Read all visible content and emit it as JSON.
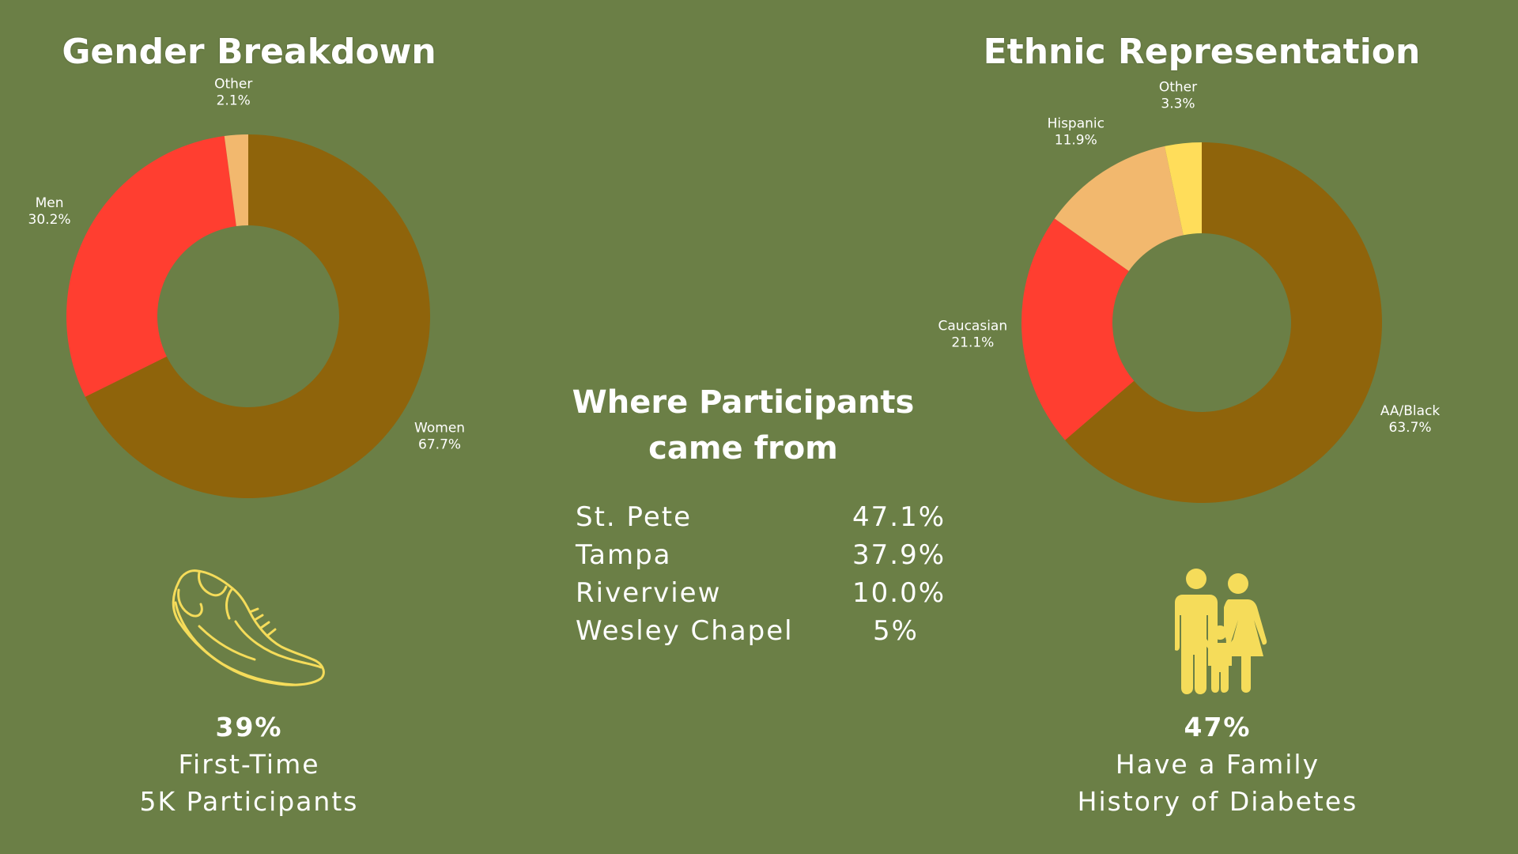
{
  "gender": {
    "title": "Gender Breakdown",
    "chart_data": {
      "type": "pie",
      "title": "Gender Breakdown",
      "slices": [
        {
          "label": "Women",
          "value": 67.7,
          "display": "67.7%",
          "color": "#8f640b"
        },
        {
          "label": "Men",
          "value": 30.2,
          "display": "30.2%",
          "color": "#ff3e30"
        },
        {
          "label": "Other",
          "value": 2.1,
          "display": "2.1%",
          "color": "#f2b86e"
        }
      ]
    }
  },
  "ethnic": {
    "title": "Ethnic Representation",
    "chart_data": {
      "type": "pie",
      "title": "Ethnic Representation",
      "slices": [
        {
          "label": "AA/Black",
          "value": 63.7,
          "display": "63.7%",
          "color": "#8f640b"
        },
        {
          "label": "Caucasian",
          "value": 21.1,
          "display": "21.1%",
          "color": "#ff3e30"
        },
        {
          "label": "Hispanic",
          "value": 11.9,
          "display": "11.9%",
          "color": "#f2b86e"
        },
        {
          "label": "Other",
          "value": 3.3,
          "display": "3.3%",
          "color": "#ffdd5a"
        }
      ]
    }
  },
  "locations": {
    "title_line1": "Where Participants",
    "title_line2": "came from",
    "rows": [
      {
        "name": "St. Pete",
        "value": "47.1%"
      },
      {
        "name": "Tampa",
        "value": "37.9%"
      },
      {
        "name": "Riverview",
        "value": "10.0%"
      },
      {
        "name": "Wesley Chapel",
        "value": "5%"
      }
    ]
  },
  "stats": {
    "first_time": {
      "pct": "39%",
      "line1": "First-Time",
      "line2": "5K Participants",
      "icon": "running-shoe-icon"
    },
    "family": {
      "pct": "47%",
      "line1": "Have a Family",
      "line2": "History of Diabetes",
      "icon": "family-icon"
    }
  },
  "colors": {
    "background": "#6b7f46",
    "icon": "#f5dc5a"
  }
}
